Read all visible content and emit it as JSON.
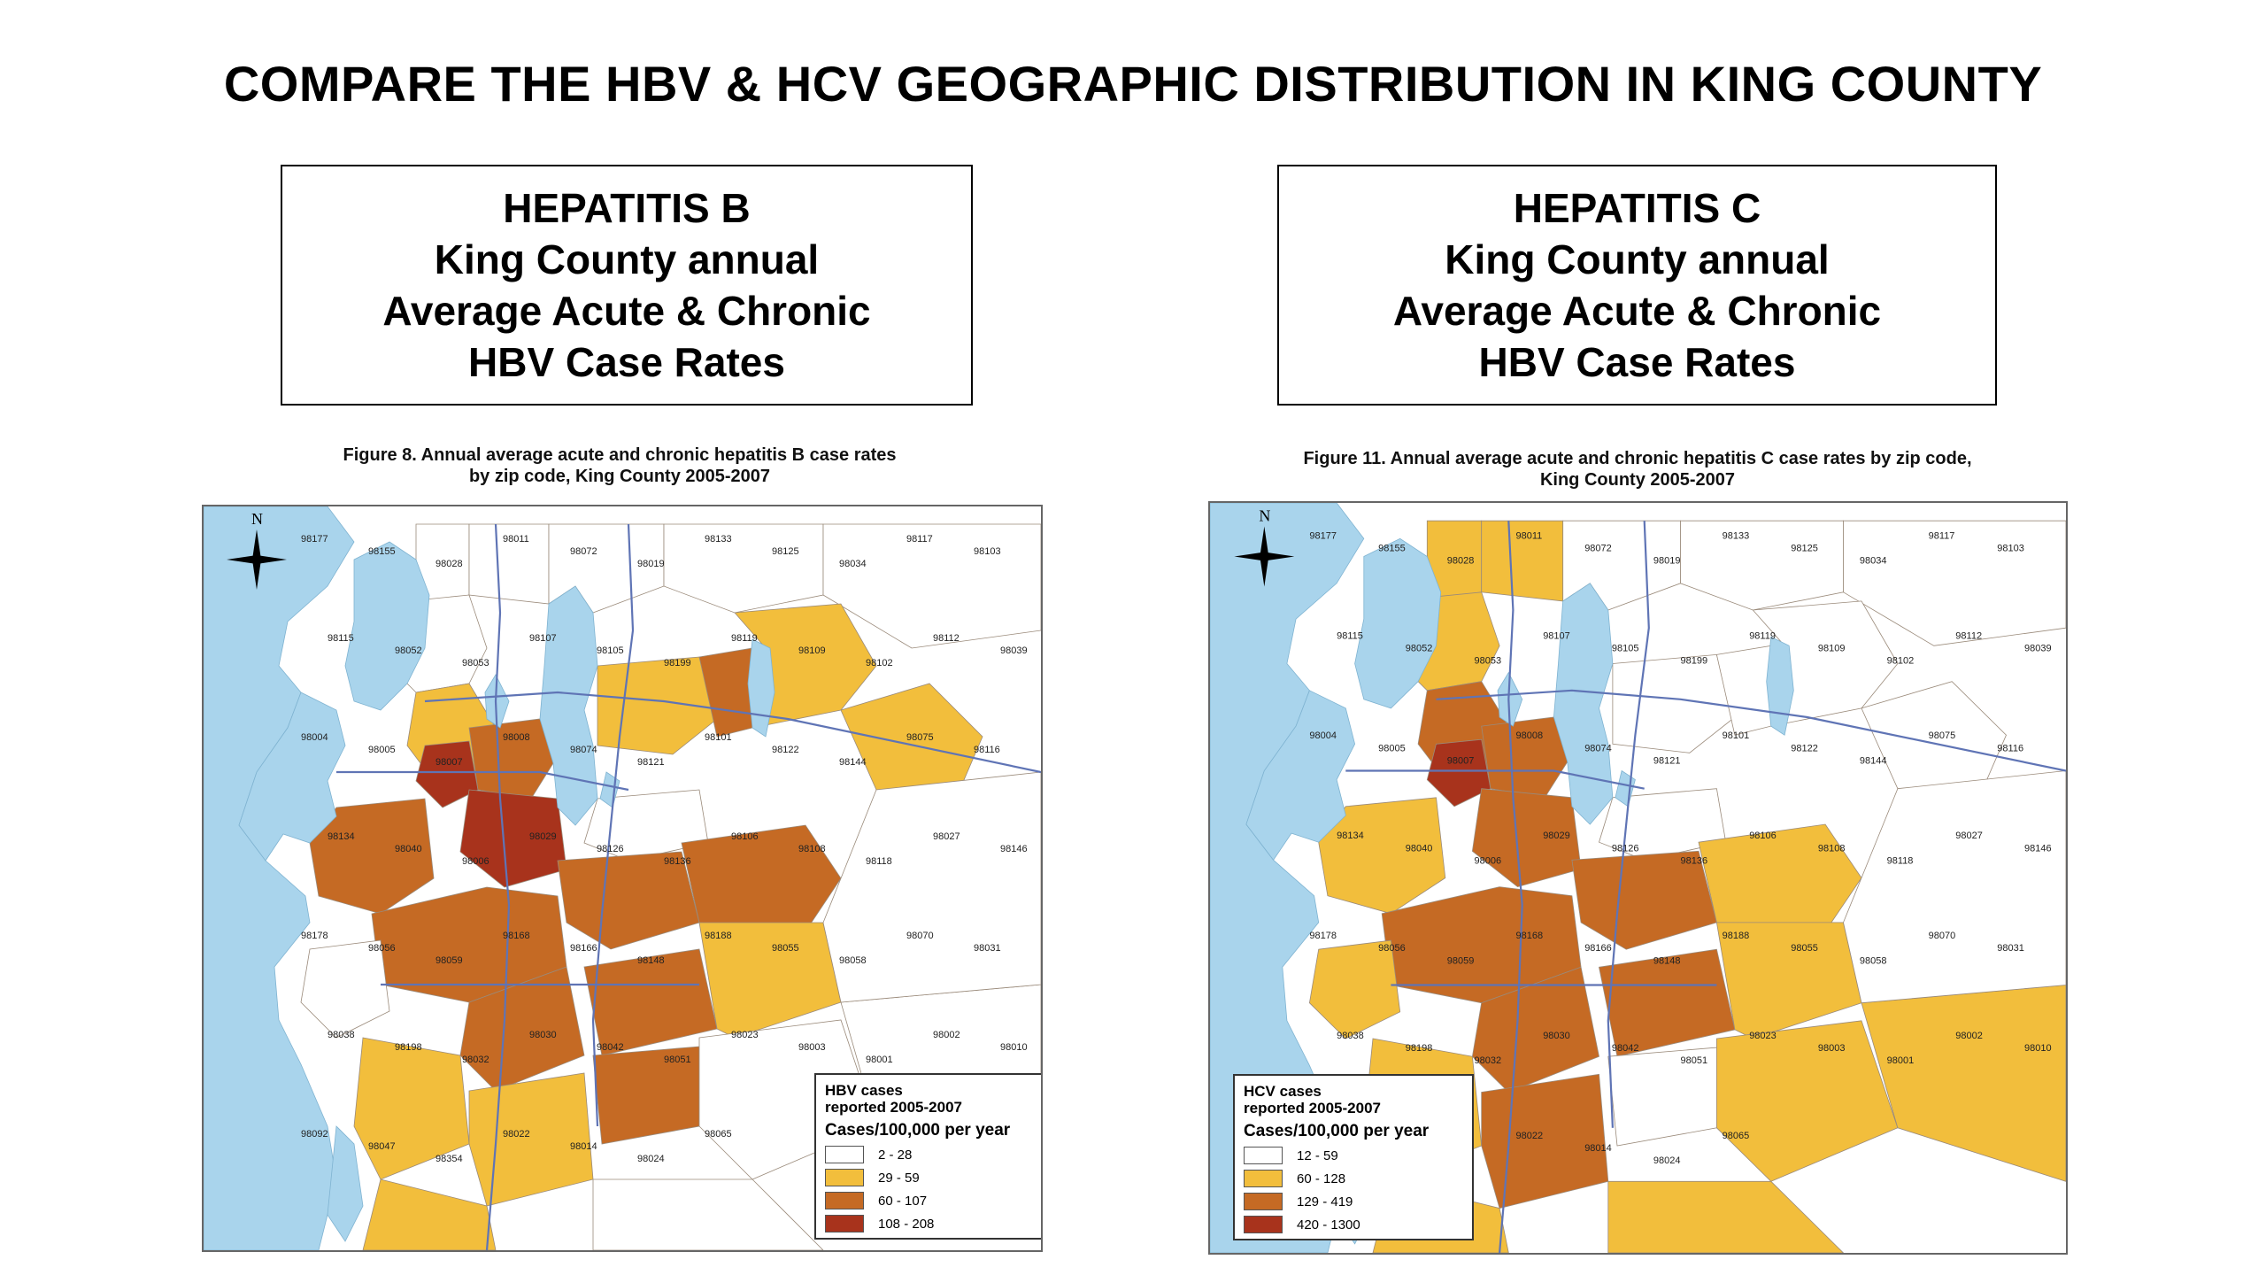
{
  "slide": {
    "title": "COMPARE THE HBV & HCV GEOGRAPHIC DISTRIBUTION IN KING COUNTY"
  },
  "colors": {
    "water": "#a9d4ec",
    "low": "#ffffff",
    "mid": "#f2be3c",
    "high": "#c56a24",
    "top": "#a8331c",
    "road": "#5f74b5"
  },
  "hepatitis_b": {
    "box_lines": [
      "HEPATITIS B",
      "King County annual",
      "Average Acute & Chronic",
      "HBV Case Rates"
    ],
    "figure_caption_1": "Figure 8. Annual average acute and chronic hepatitis B case rates",
    "figure_caption_2": "by zip code, King County 2005-2007",
    "legend": {
      "title_1": "HBV cases",
      "title_2": "reported 2005-2007",
      "subtitle": "Cases/100,000 per year",
      "classes": [
        {
          "label": "2 - 28",
          "color": "#ffffff"
        },
        {
          "label": "29 - 59",
          "color": "#f2be3c"
        },
        {
          "label": "60 - 107",
          "color": "#c56a24"
        },
        {
          "label": "108 - 208",
          "color": "#a8331c"
        }
      ]
    }
  },
  "hepatitis_c": {
    "box_lines": [
      "HEPATITIS C",
      "King County annual",
      "Average Acute & Chronic",
      "HBV Case Rates"
    ],
    "figure_caption_1": "Figure 11. Annual average acute and chronic hepatitis C case rates by zip code,",
    "figure_caption_2": "King County 2005-2007",
    "legend": {
      "title_1": "HCV cases",
      "title_2": "reported 2005-2007",
      "subtitle": "Cases/100,000 per year",
      "classes": [
        {
          "label": "12 - 59",
          "color": "#ffffff"
        },
        {
          "label": "60 - 128",
          "color": "#f2be3c"
        },
        {
          "label": "129 - 419",
          "color": "#c56a24"
        },
        {
          "label": "420 - 1300",
          "color": "#a8331c"
        }
      ]
    }
  },
  "north_label": "N",
  "zip_labels": [
    "98177",
    "98155",
    "98028",
    "98011",
    "98072",
    "98019",
    "98133",
    "98125",
    "98034",
    "98117",
    "98103",
    "98115",
    "98052",
    "98053",
    "98107",
    "98105",
    "98199",
    "98119",
    "98109",
    "98102",
    "98112",
    "98039",
    "98004",
    "98005",
    "98007",
    "98008",
    "98074",
    "98121",
    "98101",
    "98122",
    "98144",
    "98075",
    "98116",
    "98134",
    "98040",
    "98006",
    "98029",
    "98126",
    "98136",
    "98106",
    "98108",
    "98118",
    "98027",
    "98146",
    "98178",
    "98056",
    "98059",
    "98168",
    "98166",
    "98148",
    "98188",
    "98055",
    "98058",
    "98070",
    "98031",
    "98038",
    "98198",
    "98032",
    "98030",
    "98042",
    "98051",
    "98023",
    "98003",
    "98001",
    "98002",
    "98010",
    "98092",
    "98047",
    "98354",
    "98022",
    "98014",
    "98024",
    "98065"
  ]
}
